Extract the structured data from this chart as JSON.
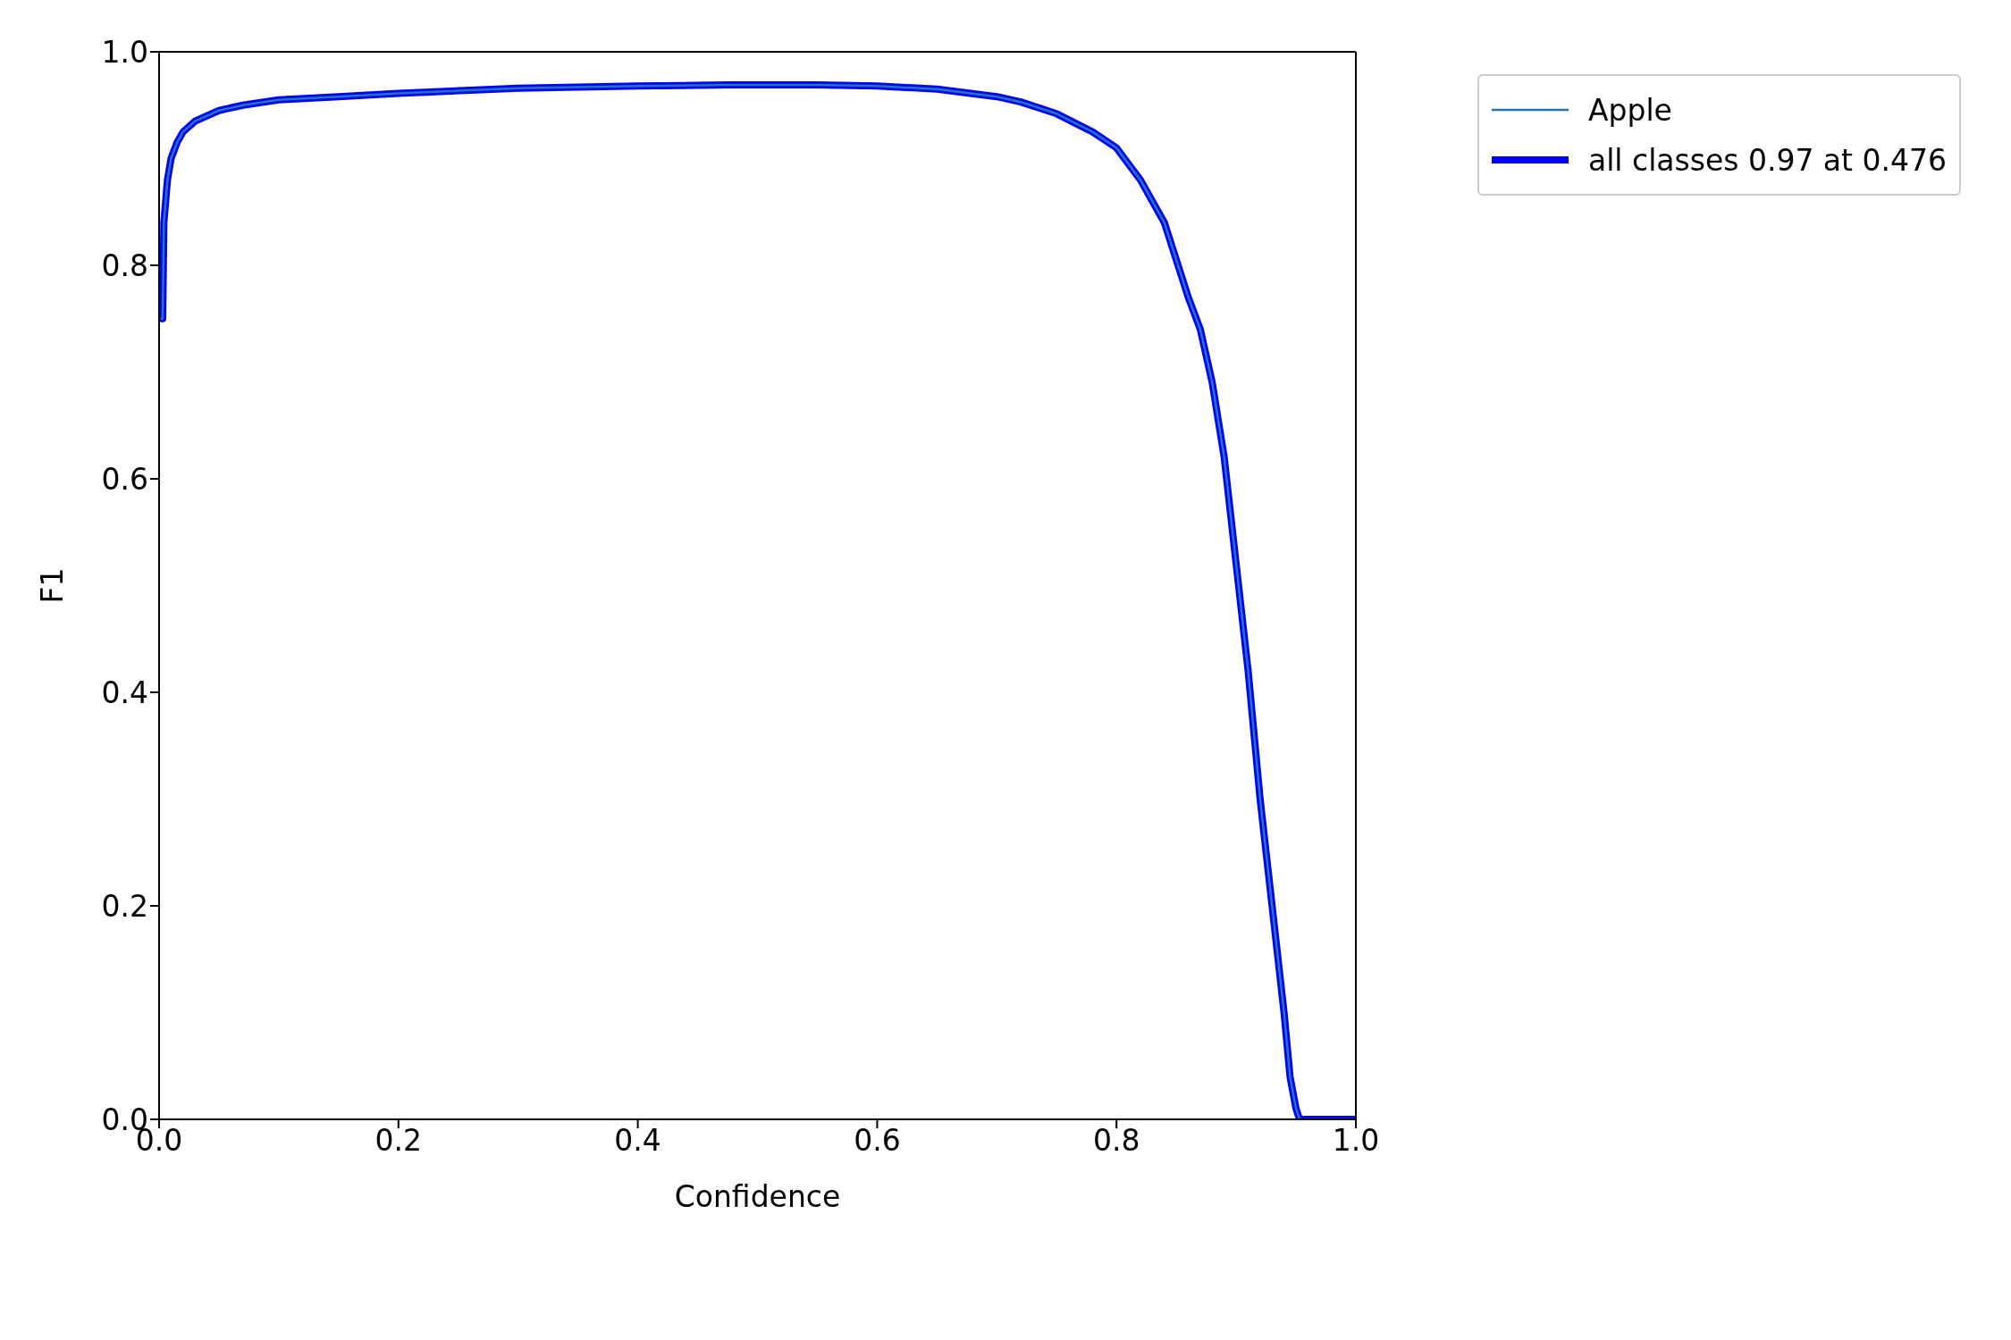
{
  "chart_data": {
    "type": "line",
    "xlabel": "Confidence",
    "ylabel": "F1",
    "xlim": [
      0,
      1
    ],
    "ylim": [
      0,
      1
    ],
    "xticks": [
      {
        "value": 0,
        "label": "0.0"
      },
      {
        "value": 0.2,
        "label": "0.2"
      },
      {
        "value": 0.4,
        "label": "0.4"
      },
      {
        "value": 0.6,
        "label": "0.6"
      },
      {
        "value": 0.8,
        "label": "0.8"
      },
      {
        "value": 1,
        "label": "1.0"
      }
    ],
    "yticks": [
      {
        "value": 0,
        "label": "0.0"
      },
      {
        "value": 0.2,
        "label": "0.2"
      },
      {
        "value": 0.4,
        "label": "0.4"
      },
      {
        "value": 0.6,
        "label": "0.6"
      },
      {
        "value": 0.8,
        "label": "0.8"
      },
      {
        "value": 1,
        "label": "1.0"
      }
    ],
    "x": [
      0.002,
      0.003,
      0.004,
      0.007,
      0.01,
      0.015,
      0.02,
      0.03,
      0.05,
      0.07,
      0.1,
      0.15,
      0.2,
      0.3,
      0.4,
      0.476,
      0.55,
      0.6,
      0.65,
      0.7,
      0.72,
      0.75,
      0.78,
      0.8,
      0.82,
      0.84,
      0.86,
      0.87,
      0.88,
      0.89,
      0.9,
      0.905,
      0.91,
      0.915,
      0.92,
      0.925,
      0.93,
      0.935,
      0.94,
      0.945,
      0.95,
      0.953,
      0.97,
      1.0
    ],
    "series": [
      {
        "name": "Apple",
        "color": "#1f77b4",
        "values": [
          0.75,
          0.75,
          0.84,
          0.88,
          0.9,
          0.915,
          0.925,
          0.935,
          0.945,
          0.95,
          0.955,
          0.958,
          0.961,
          0.966,
          0.968,
          0.969,
          0.969,
          0.968,
          0.965,
          0.958,
          0.953,
          0.942,
          0.925,
          0.91,
          0.88,
          0.84,
          0.77,
          0.74,
          0.69,
          0.62,
          0.52,
          0.47,
          0.42,
          0.36,
          0.3,
          0.25,
          0.2,
          0.15,
          0.1,
          0.04,
          0.01,
          0,
          0,
          0
        ]
      },
      {
        "name": "all classes 0.97 at 0.476",
        "color": "#0000ff",
        "values": [
          0.75,
          0.75,
          0.84,
          0.88,
          0.9,
          0.915,
          0.925,
          0.935,
          0.945,
          0.95,
          0.955,
          0.958,
          0.961,
          0.966,
          0.968,
          0.969,
          0.969,
          0.968,
          0.965,
          0.958,
          0.953,
          0.942,
          0.925,
          0.91,
          0.88,
          0.84,
          0.77,
          0.74,
          0.69,
          0.62,
          0.52,
          0.47,
          0.42,
          0.36,
          0.3,
          0.25,
          0.2,
          0.15,
          0.1,
          0.04,
          0.01,
          0,
          0,
          0
        ]
      }
    ],
    "grid": false,
    "legend": "top right",
    "marker": "none",
    "line_style": "solid"
  }
}
